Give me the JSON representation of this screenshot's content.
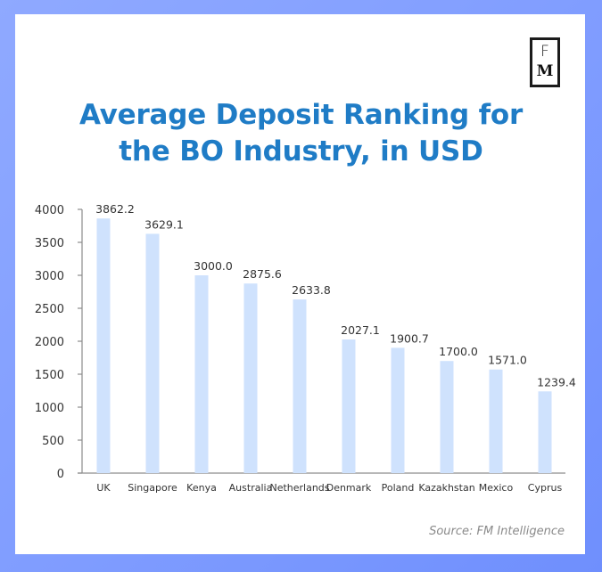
{
  "logo": {
    "line1": "F",
    "line2": "M"
  },
  "chart_data": {
    "type": "bar",
    "title": "Average Deposit Ranking for the BO Industry, in USD",
    "title_lines": [
      "Average Deposit Ranking for",
      "the BO Industry, in USD"
    ],
    "xlabel": "",
    "ylabel": "",
    "categories": [
      "UK",
      "Singapore",
      "Kenya",
      "Australia",
      "Netherlands",
      "Denmark",
      "Poland",
      "Kazakhstan",
      "Mexico",
      "Cyprus"
    ],
    "values": [
      3862.2,
      3629.1,
      3000.0,
      2875.6,
      2633.8,
      2027.1,
      1900.7,
      1700.0,
      1571.0,
      1239.4
    ],
    "value_labels": [
      "3862.2",
      "3629.1",
      "3000.0",
      "2875.6",
      "2633.8",
      "2027.1",
      "1900.7",
      "1700.0",
      "1571.0",
      "1239.4"
    ],
    "ylim": [
      0,
      4000
    ],
    "yticks": [
      0,
      500,
      1000,
      1500,
      2000,
      2500,
      3000,
      3500,
      4000
    ],
    "grid": false,
    "legend": "none",
    "colors": {
      "bar": "#cfe2fd",
      "axis": "#8c8c8c",
      "title": "#1f7cc6",
      "text": "#333333"
    }
  },
  "source": "Source: FM Intelligence"
}
